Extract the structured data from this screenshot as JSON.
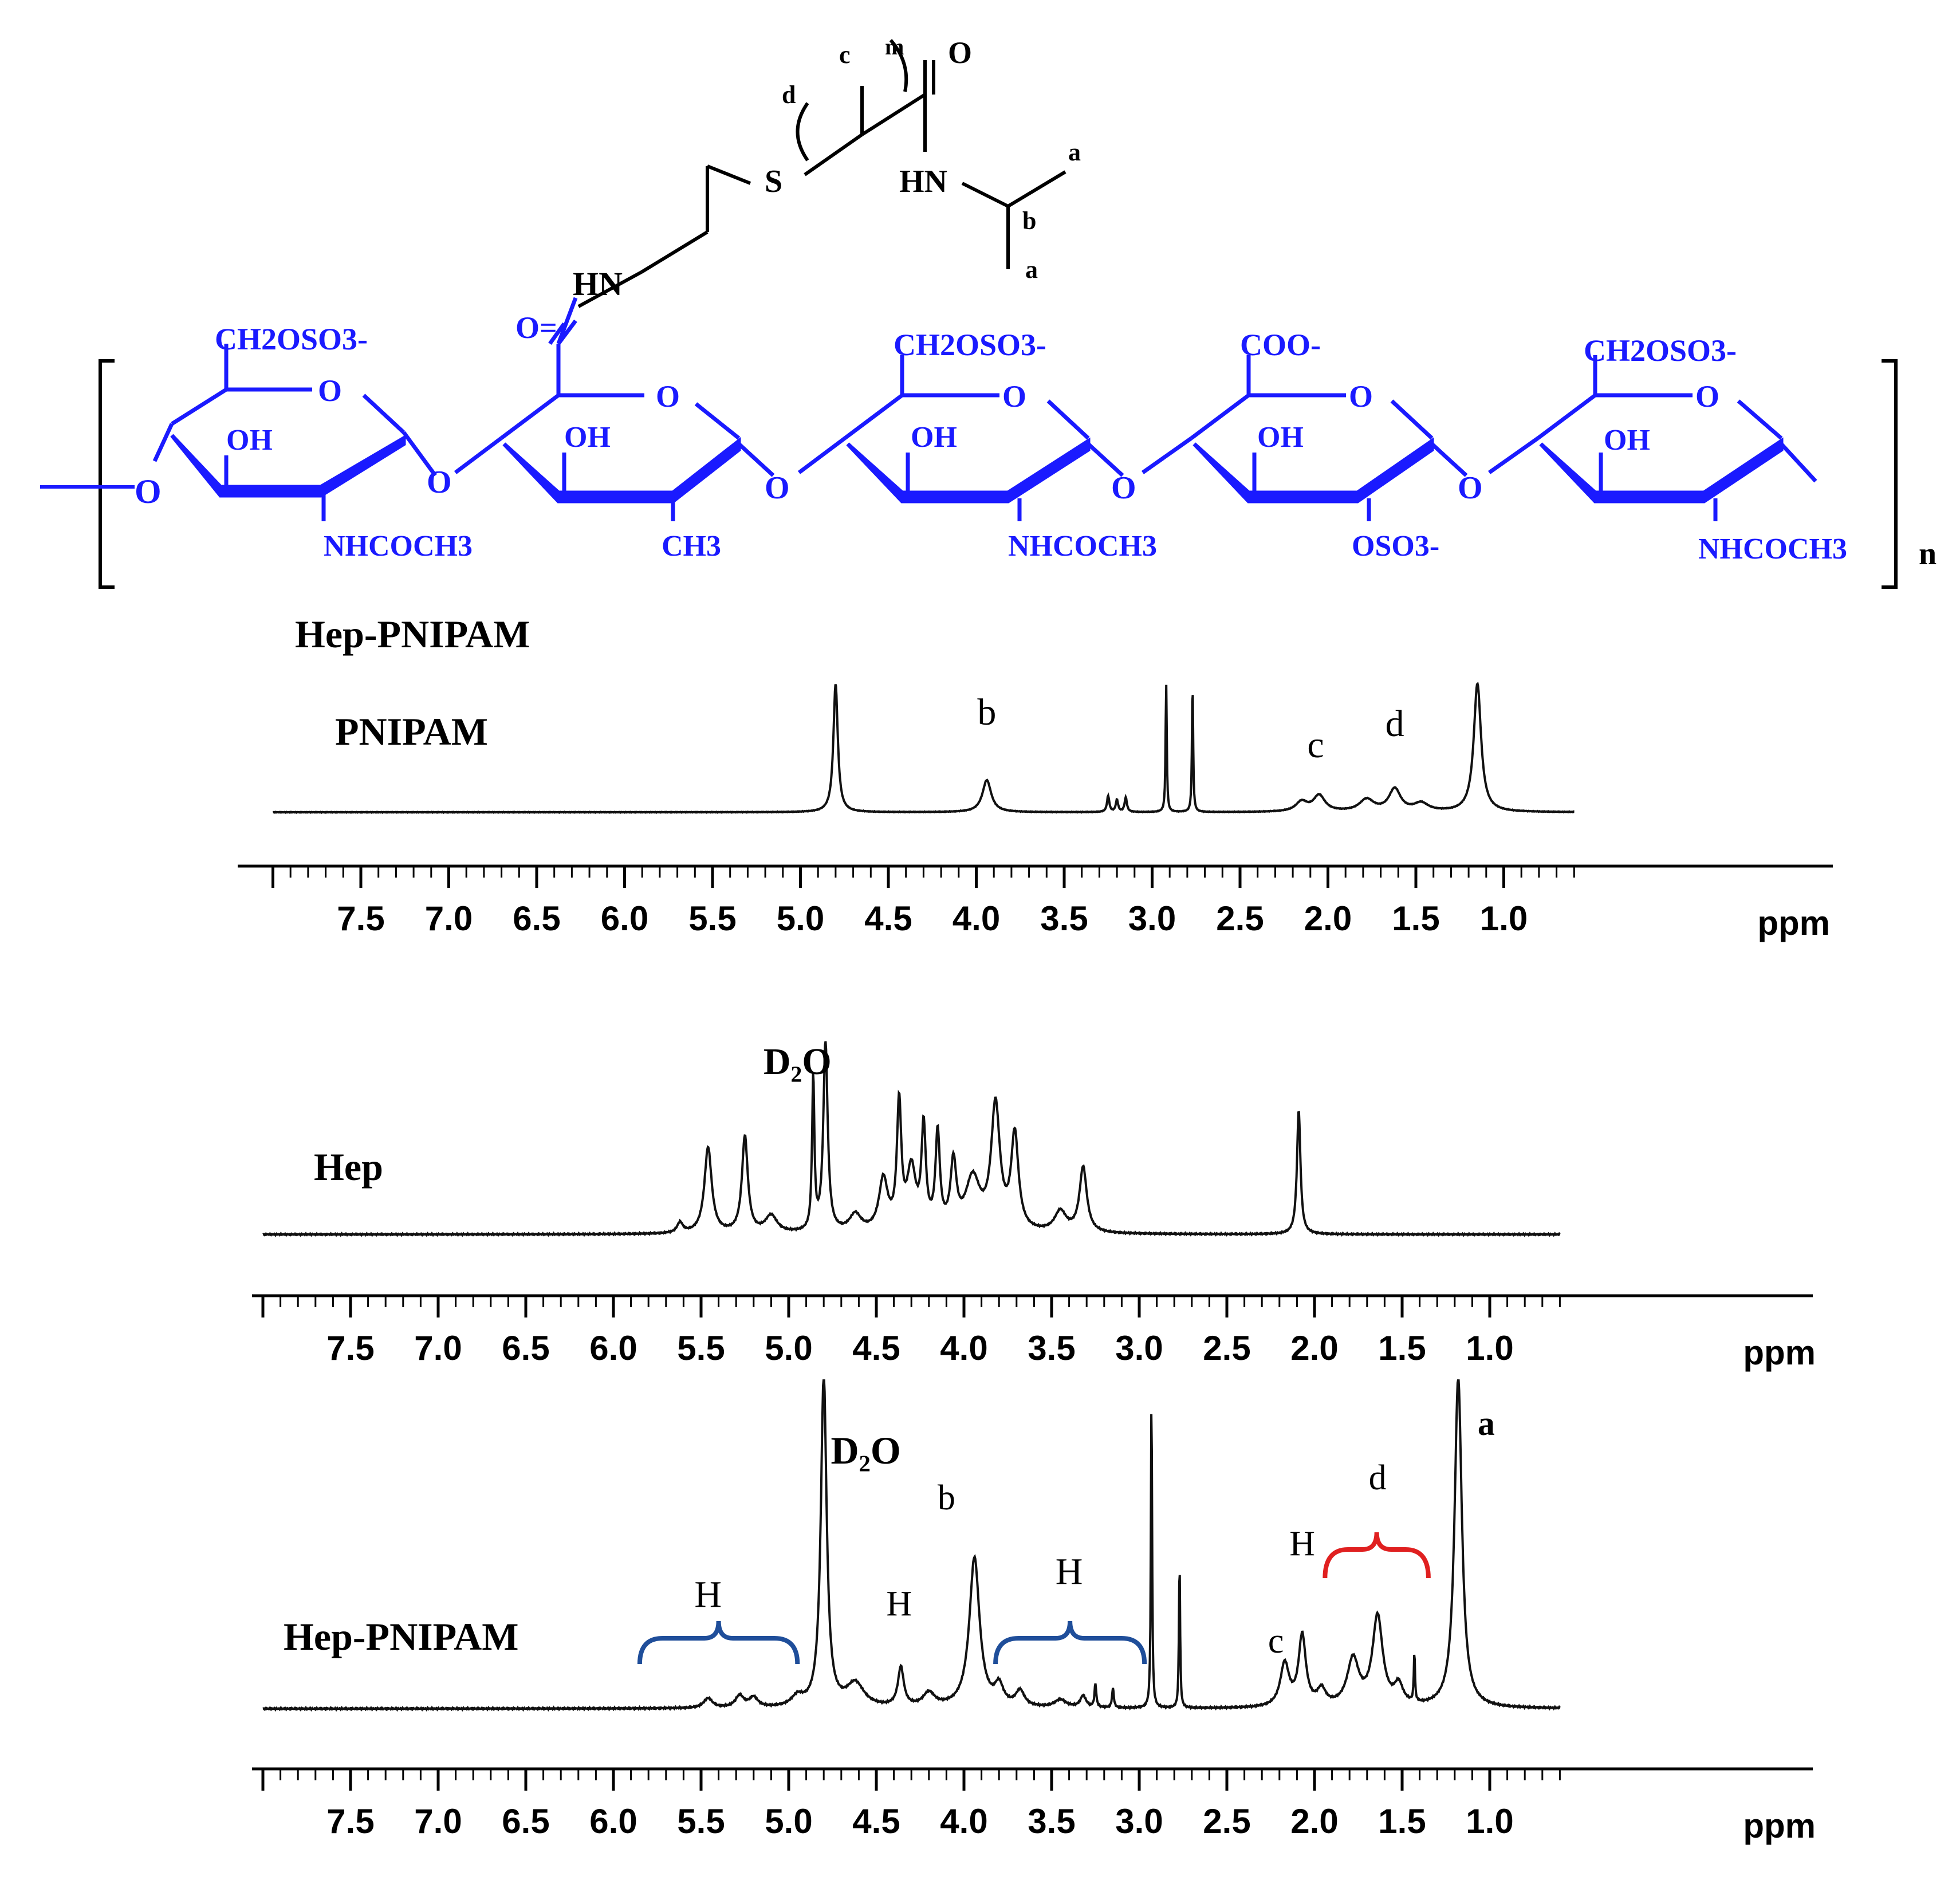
{
  "structure": {
    "caption": "Hep-PNIPAM",
    "repeat_subscript": "n",
    "graft_subscript": "m",
    "atom_labels": {
      "s": "S",
      "hn_link": "HN",
      "hn_amide": "HN",
      "o_amide": "O",
      "o_link": "O",
      "c": "c",
      "d": "d",
      "a1": "a",
      "a2": "a",
      "b": "b"
    },
    "ring_labels": {
      "ring1_top": "CH2OSO3-",
      "ring1_oh": "OH",
      "ring1_bottom": "NHCOCH3",
      "ring1_o": "O",
      "left_o": "O",
      "ring2_top": "O=",
      "ring2_oh": "OH",
      "ring2_bottom": "CH3",
      "ring2_o": "O",
      "link12": "O",
      "ring3_top": "CH2OSO3-",
      "ring3_oh": "OH",
      "ring3_bottom": "NHCOCH3",
      "ring3_o": "O",
      "link23": "O",
      "ring4_top": "COO-",
      "ring4_oh": "OH",
      "ring4_bottom": "OSO3-",
      "ring4_o": "O",
      "link34": "O",
      "ring5_top": "CH2OSO3-",
      "ring5_oh": "OH",
      "ring5_bottom": "NHCOCH3",
      "ring5_o": "O",
      "link45": "O"
    },
    "colors": {
      "backbone": "#1a1aff",
      "graft": "#000000"
    }
  },
  "chart_data": [
    {
      "type": "line",
      "sample_label": "PNIPAM",
      "xlabel": "ppm",
      "xlim": [
        8.0,
        0.6
      ],
      "reversed_x": true,
      "ticks": [
        "7.5",
        "7.0",
        "6.5",
        "6.0",
        "5.5",
        "5.0",
        "4.5",
        "4.0",
        "3.5",
        "3.0",
        "2.5",
        "2.0",
        "1.5",
        "1.0"
      ],
      "tick_values": [
        7.5,
        7.0,
        6.5,
        6.0,
        5.5,
        5.0,
        4.5,
        4.0,
        3.5,
        3.0,
        2.5,
        2.0,
        1.5,
        1.0
      ],
      "peaks": [
        {
          "ppm": 4.8,
          "height": 1.6,
          "width": 0.015
        },
        {
          "ppm": 3.94,
          "height": 0.4,
          "width": 0.03
        },
        {
          "ppm": 3.25,
          "height": 0.2,
          "width": 0.008
        },
        {
          "ppm": 3.2,
          "height": 0.15,
          "width": 0.008
        },
        {
          "ppm": 3.15,
          "height": 0.18,
          "width": 0.008
        },
        {
          "ppm": 2.92,
          "height": 1.6,
          "width": 0.004
        },
        {
          "ppm": 2.77,
          "height": 1.6,
          "width": 0.004
        },
        {
          "ppm": 2.15,
          "height": 0.12,
          "width": 0.04
        },
        {
          "ppm": 2.05,
          "height": 0.2,
          "width": 0.04
        },
        {
          "ppm": 1.78,
          "height": 0.15,
          "width": 0.05
        },
        {
          "ppm": 1.62,
          "height": 0.28,
          "width": 0.04
        },
        {
          "ppm": 1.47,
          "height": 0.1,
          "width": 0.05
        },
        {
          "ppm": 1.15,
          "height": 1.6,
          "width": 0.025
        }
      ],
      "annotations": [
        {
          "text": "b",
          "ppm": 3.94
        },
        {
          "text": "c",
          "ppm": 2.07
        },
        {
          "text": "d",
          "ppm": 1.62
        }
      ]
    },
    {
      "type": "line",
      "sample_label": "Hep",
      "xlabel": "ppm",
      "xlim": [
        8.0,
        0.6
      ],
      "reversed_x": true,
      "ticks": [
        "7.5",
        "7.0",
        "6.5",
        "6.0",
        "5.5",
        "5.0",
        "4.5",
        "4.0",
        "3.5",
        "3.0",
        "2.5",
        "2.0",
        "1.5",
        "1.0"
      ],
      "tick_values": [
        7.5,
        7.0,
        6.5,
        6.0,
        5.5,
        5.0,
        4.5,
        4.0,
        3.5,
        3.0,
        2.5,
        2.0,
        1.5,
        1.0
      ],
      "peaks": [
        {
          "ppm": 5.62,
          "height": 0.06,
          "width": 0.02
        },
        {
          "ppm": 5.46,
          "height": 0.5,
          "width": 0.025
        },
        {
          "ppm": 5.25,
          "height": 0.56,
          "width": 0.02
        },
        {
          "ppm": 5.1,
          "height": 0.1,
          "width": 0.04
        },
        {
          "ppm": 4.86,
          "height": 0.88,
          "width": 0.008
        },
        {
          "ppm": 4.79,
          "height": 1.1,
          "width": 0.015
        },
        {
          "ppm": 4.62,
          "height": 0.1,
          "width": 0.04
        },
        {
          "ppm": 4.46,
          "height": 0.3,
          "width": 0.03
        },
        {
          "ppm": 4.37,
          "height": 0.72,
          "width": 0.015
        },
        {
          "ppm": 4.3,
          "height": 0.35,
          "width": 0.03
        },
        {
          "ppm": 4.23,
          "height": 0.58,
          "width": 0.015
        },
        {
          "ppm": 4.15,
          "height": 0.55,
          "width": 0.015
        },
        {
          "ppm": 4.06,
          "height": 0.38,
          "width": 0.02
        },
        {
          "ppm": 3.95,
          "height": 0.3,
          "width": 0.05
        },
        {
          "ppm": 3.82,
          "height": 0.72,
          "width": 0.03
        },
        {
          "ppm": 3.71,
          "height": 0.55,
          "width": 0.025
        },
        {
          "ppm": 3.45,
          "height": 0.12,
          "width": 0.04
        },
        {
          "ppm": 3.32,
          "height": 0.38,
          "width": 0.025
        },
        {
          "ppm": 2.09,
          "height": 0.72,
          "width": 0.012
        }
      ],
      "annotations": [
        {
          "text": "D₂O",
          "ppm": 4.95
        }
      ]
    },
    {
      "type": "line",
      "sample_label": "Hep-PNIPAM",
      "xlabel": "ppm",
      "xlim": [
        8.0,
        0.6
      ],
      "reversed_x": true,
      "ticks": [
        "7.5",
        "7.0",
        "6.5",
        "6.0",
        "5.5",
        "5.0",
        "4.5",
        "4.0",
        "3.5",
        "3.0",
        "2.5",
        "2.0",
        "1.5",
        "1.0"
      ],
      "tick_values": [
        7.5,
        7.0,
        6.5,
        6.0,
        5.5,
        5.0,
        4.5,
        4.0,
        3.5,
        3.0,
        2.5,
        2.0,
        1.5,
        1.0
      ],
      "peaks": [
        {
          "ppm": 5.46,
          "height": 0.05,
          "width": 0.03
        },
        {
          "ppm": 5.28,
          "height": 0.06,
          "width": 0.03
        },
        {
          "ppm": 5.2,
          "height": 0.05,
          "width": 0.03
        },
        {
          "ppm": 4.95,
          "height": 0.05,
          "width": 0.04
        },
        {
          "ppm": 4.8,
          "height": 1.7,
          "width": 0.02
        },
        {
          "ppm": 4.62,
          "height": 0.12,
          "width": 0.06
        },
        {
          "ppm": 4.36,
          "height": 0.2,
          "width": 0.02
        },
        {
          "ppm": 4.2,
          "height": 0.07,
          "width": 0.04
        },
        {
          "ppm": 3.94,
          "height": 0.77,
          "width": 0.035
        },
        {
          "ppm": 3.8,
          "height": 0.1,
          "width": 0.03
        },
        {
          "ppm": 3.68,
          "height": 0.08,
          "width": 0.03
        },
        {
          "ppm": 3.45,
          "height": 0.04,
          "width": 0.04
        },
        {
          "ppm": 3.32,
          "height": 0.06,
          "width": 0.02
        },
        {
          "ppm": 3.25,
          "height": 0.12,
          "width": 0.006
        },
        {
          "ppm": 3.15,
          "height": 0.1,
          "width": 0.006
        },
        {
          "ppm": 2.93,
          "height": 1.6,
          "width": 0.004
        },
        {
          "ppm": 2.77,
          "height": 0.75,
          "width": 0.004
        },
        {
          "ppm": 2.17,
          "height": 0.22,
          "width": 0.03
        },
        {
          "ppm": 2.07,
          "height": 0.36,
          "width": 0.025
        },
        {
          "ppm": 1.96,
          "height": 0.08,
          "width": 0.03
        },
        {
          "ppm": 1.78,
          "height": 0.24,
          "width": 0.04
        },
        {
          "ppm": 1.64,
          "height": 0.46,
          "width": 0.035
        },
        {
          "ppm": 1.52,
          "height": 0.1,
          "width": 0.03
        },
        {
          "ppm": 1.43,
          "height": 0.25,
          "width": 0.004
        },
        {
          "ppm": 1.18,
          "height": 1.7,
          "width": 0.025
        }
      ],
      "annotations": [
        {
          "text": "D₂O",
          "ppm": 4.56
        },
        {
          "text": "b",
          "ppm": 4.1
        },
        {
          "text": "H",
          "ppm": 4.37
        },
        {
          "text": "H",
          "ppm": 5.46
        },
        {
          "text": "H",
          "ppm": 3.4
        },
        {
          "text": "c",
          "ppm": 2.22
        },
        {
          "text": "H",
          "ppm": 2.07
        },
        {
          "text": "d",
          "ppm": 1.64
        },
        {
          "text": "a",
          "ppm": 1.02
        }
      ],
      "braces": [
        {
          "from_ppm": 5.85,
          "to_ppm": 4.95,
          "color": "#1f4e9a"
        },
        {
          "from_ppm": 3.82,
          "to_ppm": 2.97,
          "color": "#1f4e9a"
        },
        {
          "from_ppm": 1.94,
          "to_ppm": 1.35,
          "color": "#e02020"
        }
      ]
    }
  ]
}
